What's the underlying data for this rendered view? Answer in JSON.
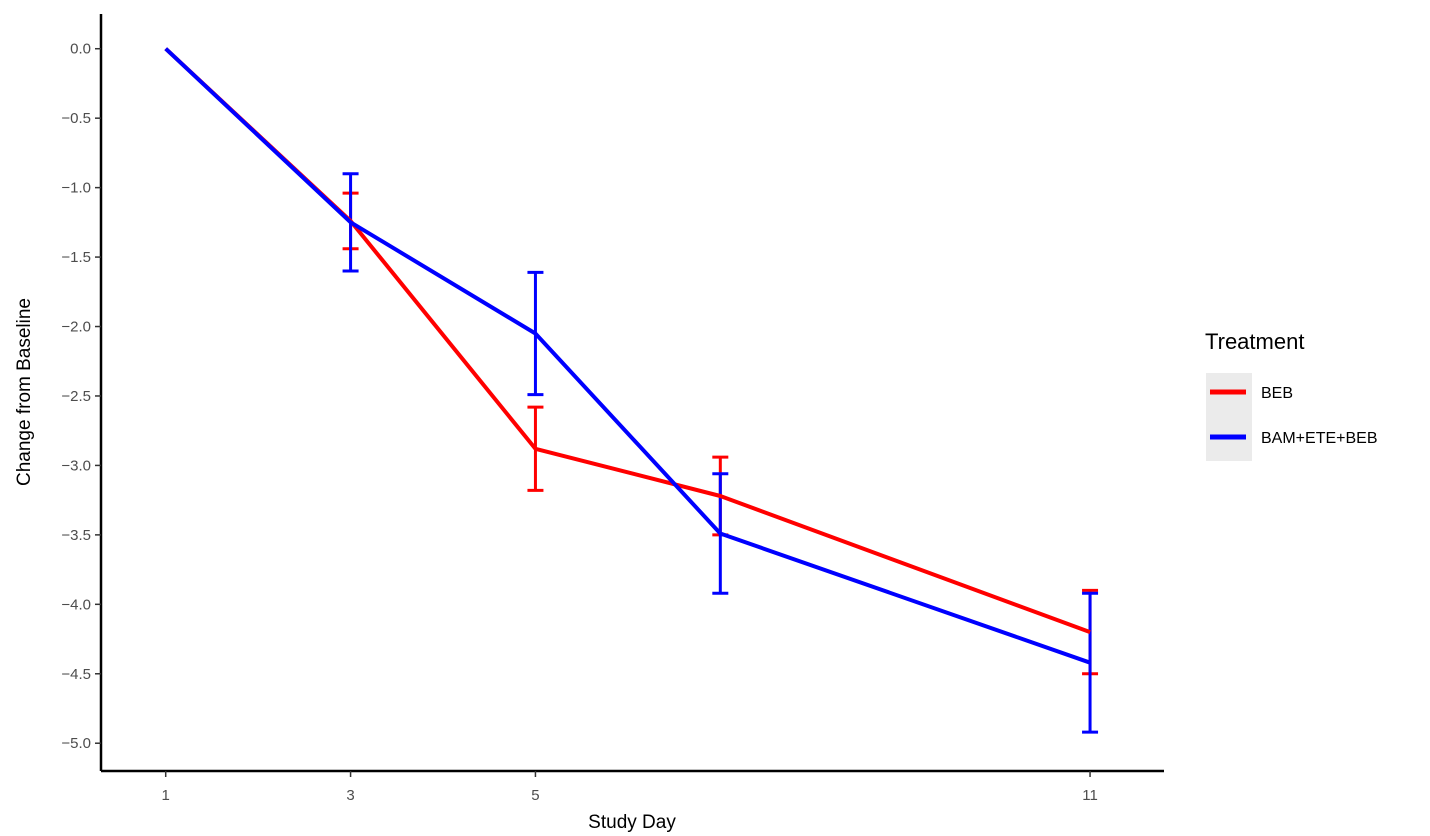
{
  "chart_data": {
    "type": "line",
    "xlabel": "Study Day",
    "ylabel": "Change from Baseline",
    "x_ticks": [
      1,
      3,
      5,
      11
    ],
    "xlim": [
      0.3,
      11.8
    ],
    "y_ticks": [
      0.0,
      -0.5,
      -1.0,
      -1.5,
      -2.0,
      -2.5,
      -3.0,
      -3.5,
      -4.0,
      -4.5,
      -5.0
    ],
    "y_tick_labels": [
      "0.0",
      "−0.5",
      "−1.0",
      "−1.5",
      "−2.0",
      "−2.5",
      "−3.0",
      "−3.5",
      "−4.0",
      "−4.5",
      "−5.0"
    ],
    "ylim": [
      -5.2,
      0.25
    ],
    "grid": false,
    "legend": {
      "title": "Treatment",
      "position": "right"
    },
    "series": [
      {
        "name": "BEB",
        "color": "#ff0000",
        "x": [
          1,
          3,
          5,
          7,
          11
        ],
        "y": [
          0.0,
          -1.24,
          -2.88,
          -3.22,
          -4.2
        ],
        "err_low": [
          0.0,
          -1.44,
          -3.18,
          -3.5,
          -4.5
        ],
        "err_high": [
          0.0,
          -1.04,
          -2.58,
          -2.94,
          -3.9
        ]
      },
      {
        "name": "BAM+ETE+BEB",
        "color": "#0000ff",
        "x": [
          1,
          3,
          5,
          7,
          11
        ],
        "y": [
          0.0,
          -1.25,
          -2.05,
          -3.49,
          -4.42
        ],
        "err_low": [
          0.0,
          -1.6,
          -2.49,
          -3.92,
          -4.92
        ],
        "err_high": [
          0.0,
          -0.9,
          -1.61,
          -3.06,
          -3.92
        ]
      }
    ]
  }
}
